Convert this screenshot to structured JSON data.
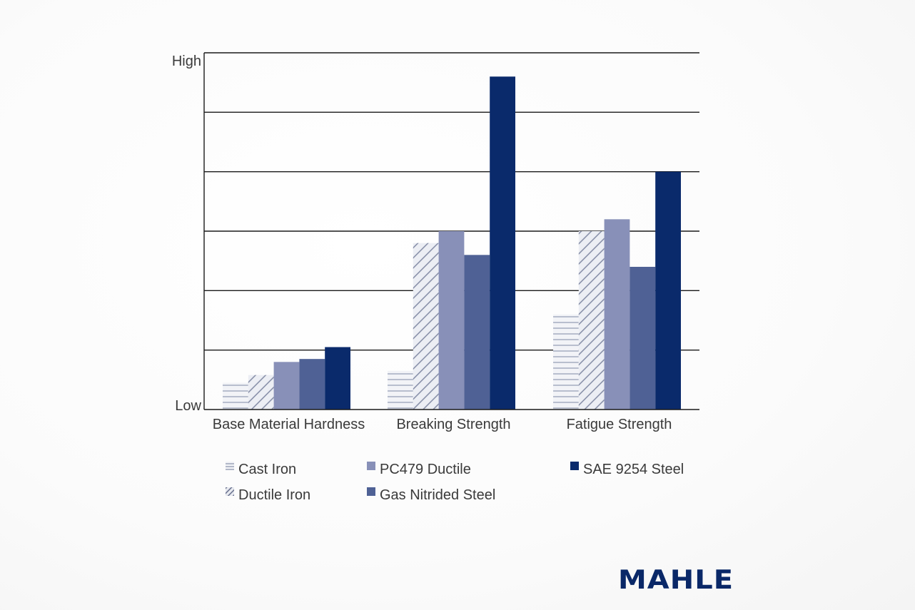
{
  "chart_data": {
    "type": "bar",
    "categories": [
      "Base Material Hardness",
      "Breaking Strength",
      "Fatigue Strength"
    ],
    "y_axis": {
      "high_label": "High",
      "low_label": "Low",
      "range": [
        0,
        6
      ],
      "gridlines": 6
    },
    "grid": true,
    "legend_position": "bottom",
    "series": [
      {
        "name": "Cast Iron",
        "values": [
          0.45,
          0.65,
          1.6
        ],
        "color": "#9aa2b8",
        "pattern": "horizontal-hatch"
      },
      {
        "name": "Ductile Iron",
        "values": [
          0.58,
          2.8,
          3.0
        ],
        "color": "#7c84a0",
        "pattern": "diagonal-hatch"
      },
      {
        "name": "PC479 Ductile",
        "values": [
          0.8,
          3.0,
          3.2
        ],
        "color": "#8890b8",
        "pattern": "solid"
      },
      {
        "name": "Gas Nitrided Steel",
        "values": [
          0.85,
          2.6,
          2.4
        ],
        "color": "#4f6195",
        "pattern": "solid"
      },
      {
        "name": "SAE 9254 Steel",
        "values": [
          1.05,
          5.6,
          4.0
        ],
        "color": "#0a2a6b",
        "pattern": "solid"
      }
    ]
  },
  "logo": {
    "text": "MAHLE"
  }
}
